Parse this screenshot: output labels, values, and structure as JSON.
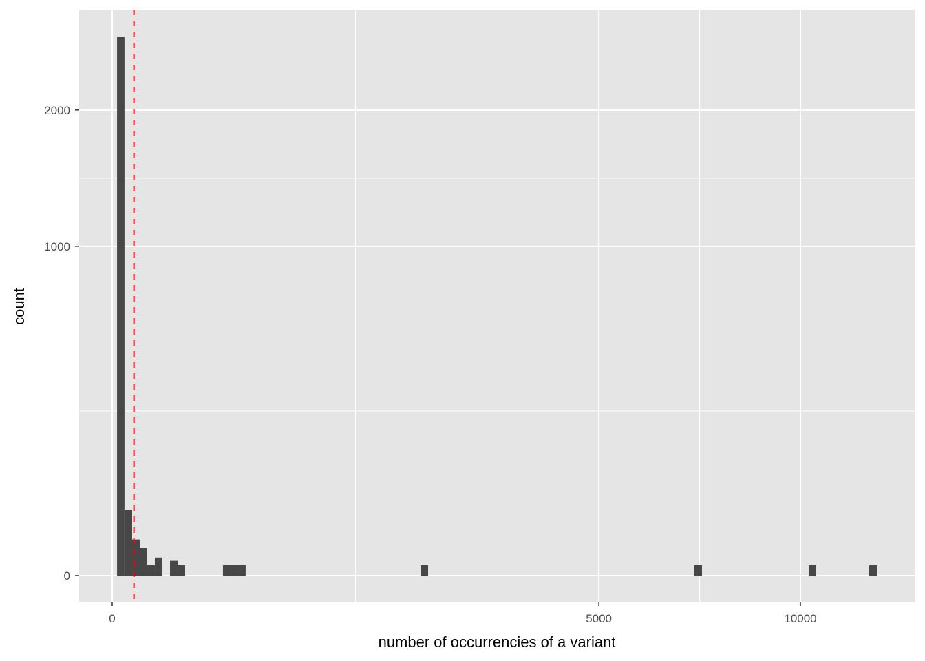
{
  "chart_data": {
    "type": "bar",
    "subtype": "histogram",
    "xlabel": "number of occurrencies of a variant",
    "ylabel": "count",
    "x_scale": "sqrt",
    "y_scale": "sqrt",
    "xlim": [
      0,
      12500
    ],
    "ylim": [
      0,
      2675
    ],
    "x_ticks": [
      0,
      5000,
      10000
    ],
    "x_tick_labels": [
      "0",
      "5000",
      "10000"
    ],
    "y_ticks": [
      0,
      1000,
      2000
    ],
    "y_tick_labels": [
      "0",
      "1000",
      "2000"
    ],
    "grid": true,
    "bins": [
      {
        "x0": 0.5,
        "x1": 3.2,
        "count": 2675
      },
      {
        "x0": 3.2,
        "x1": 8.4,
        "count": 40
      },
      {
        "x0": 8.4,
        "x1": 16,
        "count": 12
      },
      {
        "x0": 16,
        "x1": 26,
        "count": 7
      },
      {
        "x0": 26,
        "x1": 38.4,
        "count": 1
      },
      {
        "x0": 38.4,
        "x1": 53.3,
        "count": 3
      },
      {
        "x0": 70.6,
        "x1": 90.3,
        "count": 2
      },
      {
        "x0": 90.3,
        "x1": 112.4,
        "count": 1
      },
      {
        "x0": 259,
        "x1": 296,
        "count": 1
      },
      {
        "x0": 296,
        "x1": 335,
        "count": 1
      },
      {
        "x0": 335,
        "x1": 376,
        "count": 1
      },
      {
        "x0": 2007,
        "x1": 2107,
        "count": 1
      },
      {
        "x0": 7157,
        "x1": 7344,
        "count": 1
      },
      {
        "x0": 10241,
        "x1": 10465,
        "count": 1
      },
      {
        "x0": 12100,
        "x1": 12343,
        "count": 1
      }
    ],
    "vline": {
      "x": 10,
      "color": "#ff0000",
      "style": "dashed"
    },
    "bar_color": "#474747",
    "panel_color": "#e5e5e5"
  }
}
